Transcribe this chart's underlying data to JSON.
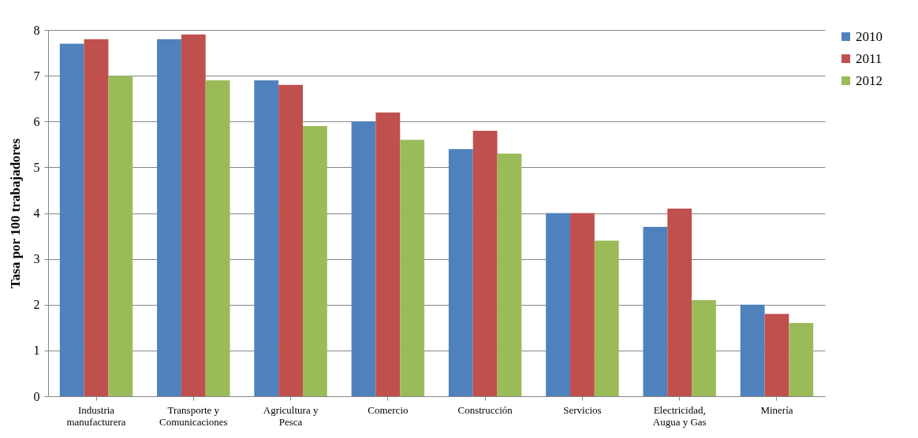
{
  "chart_data": {
    "type": "bar",
    "ylabel": "Tasa por 100 trabajadores",
    "categories": [
      "Industria manufacturera",
      "Transporte y Comunicaciones",
      "Agricultura y Pesca",
      "Comercio",
      "Construcción",
      "Servicios",
      "Electricidad, Augua y Gas",
      "Minería"
    ],
    "series": [
      {
        "name": "2010",
        "color": "#4f81bd",
        "values": [
          7.7,
          7.8,
          6.9,
          6.0,
          5.4,
          4.0,
          3.7,
          2.0
        ]
      },
      {
        "name": "2011",
        "color": "#c0504d",
        "values": [
          7.8,
          7.9,
          6.8,
          6.2,
          5.8,
          4.0,
          4.1,
          1.8
        ]
      },
      {
        "name": "2012",
        "color": "#9bbb59",
        "values": [
          7.0,
          6.9,
          5.9,
          5.6,
          5.3,
          3.4,
          2.1,
          1.6
        ]
      }
    ],
    "ylim": [
      0,
      8
    ],
    "yticks": [
      0,
      1,
      2,
      3,
      4,
      5,
      6,
      7,
      8
    ],
    "grid": "y",
    "legend": "right"
  }
}
